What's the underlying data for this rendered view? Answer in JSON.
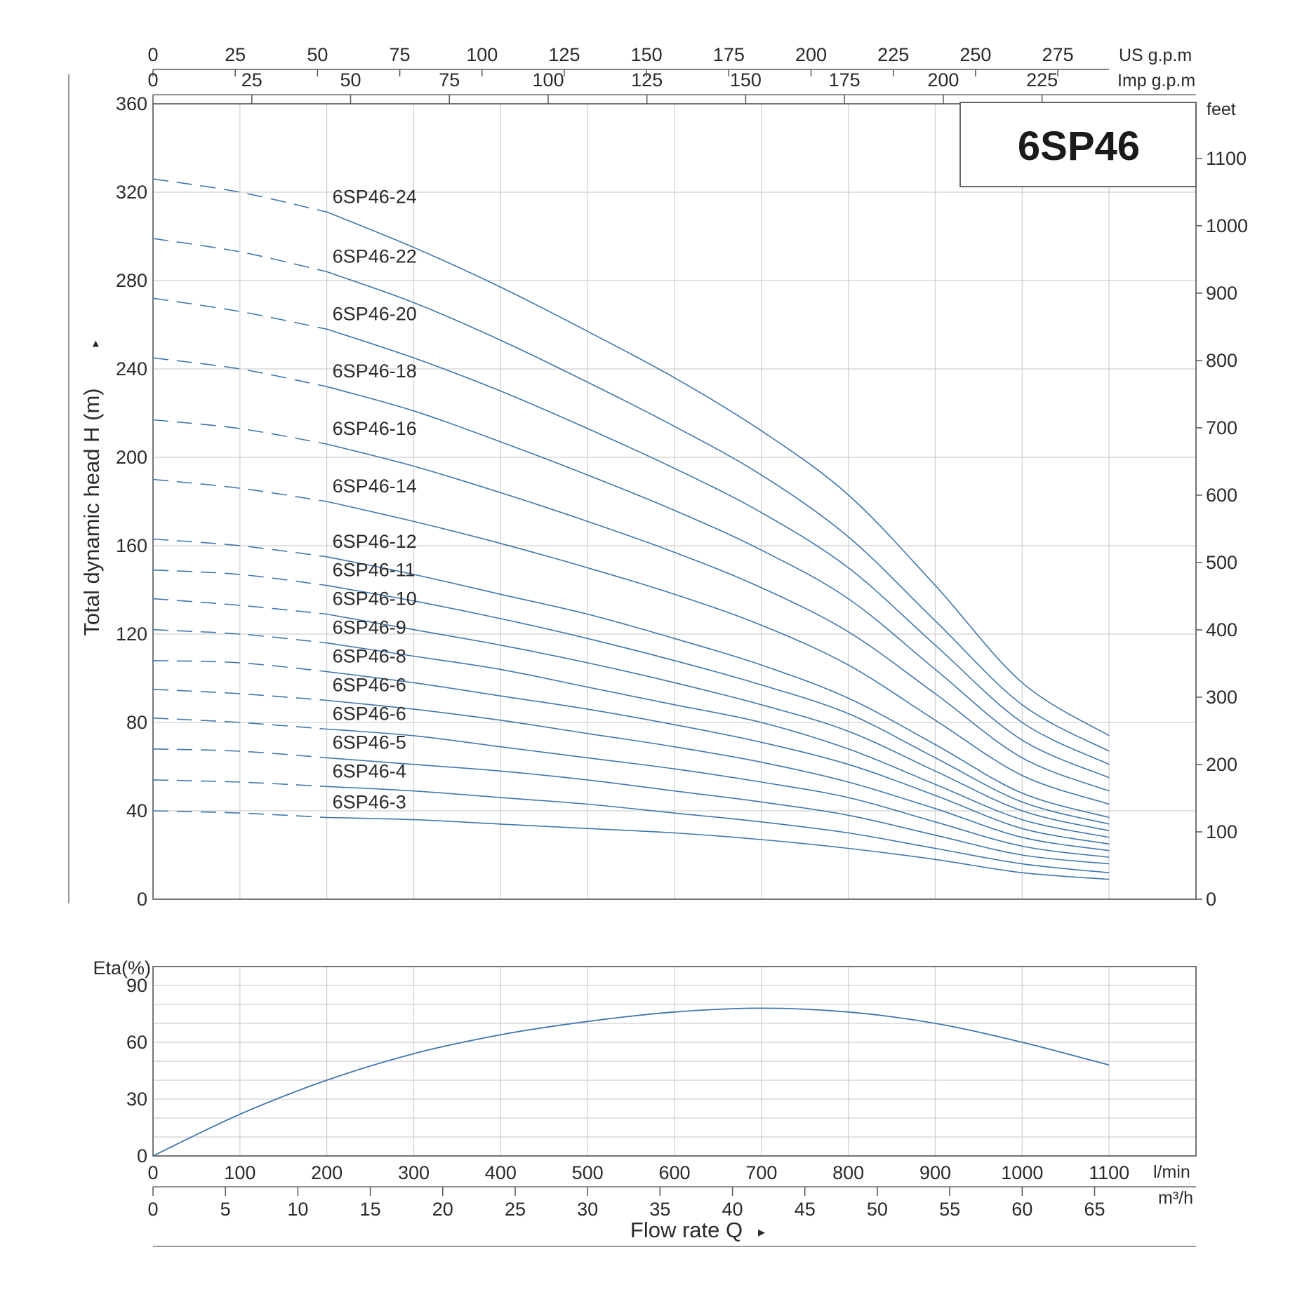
{
  "chart_data": [
    {
      "type": "line",
      "title": "6SP46",
      "ylabel": "Total dynamic head H (m)",
      "ylabel_arrow": "▸",
      "y_unit_right": "feet",
      "x_unit": "l/min",
      "xlim": [
        0,
        1200
      ],
      "ylim": [
        0,
        360
      ],
      "grid": true,
      "y_ticks": [
        "0",
        "40",
        "80",
        "120",
        "160",
        "200",
        "240",
        "280",
        "320",
        "360"
      ],
      "feet_ticks": [
        "0",
        "100",
        "200",
        "300",
        "400",
        "500",
        "600",
        "700",
        "800",
        "900",
        "1000",
        "1100"
      ],
      "us_gpm": {
        "unit": "US g.p.m",
        "ticks": [
          "0",
          "25",
          "50",
          "75",
          "100",
          "125",
          "150",
          "175",
          "200",
          "225",
          "250",
          "275"
        ]
      },
      "imp_gpm": {
        "unit": "Imp g.p.m",
        "ticks": [
          "0",
          "25",
          "50",
          "75",
          "100",
          "125",
          "150",
          "175",
          "200",
          "225"
        ]
      },
      "x": [
        0,
        100,
        200,
        300,
        400,
        500,
        600,
        700,
        800,
        900,
        1000,
        1100
      ],
      "dashed_until_x": 200,
      "series": [
        {
          "name": "6SP46-24",
          "values": [
            326,
            320,
            311,
            295,
            277,
            257,
            236,
            212,
            183,
            142,
            98,
            74
          ]
        },
        {
          "name": "6SP46-22",
          "values": [
            299,
            293,
            284,
            270,
            253,
            234,
            214,
            192,
            164,
            126,
            88,
            67
          ]
        },
        {
          "name": "6SP46-20",
          "values": [
            272,
            266,
            258,
            245,
            230,
            213,
            195,
            175,
            150,
            115,
            80,
            61
          ]
        },
        {
          "name": "6SP46-18",
          "values": [
            245,
            240,
            232,
            221,
            207,
            192,
            176,
            158,
            136,
            104,
            72,
            55
          ]
        },
        {
          "name": "6SP46-16",
          "values": [
            217,
            213,
            206,
            196,
            184,
            171,
            157,
            141,
            121,
            93,
            64,
            49
          ]
        },
        {
          "name": "6SP46-14",
          "values": [
            190,
            186,
            180,
            171,
            161,
            150,
            138,
            124,
            106,
            81,
            56,
            43
          ]
        },
        {
          "name": "6SP46-12",
          "values": [
            163,
            160,
            155,
            147,
            138,
            129,
            118,
            106,
            91,
            70,
            48,
            37
          ]
        },
        {
          "name": "6SP46-11",
          "values": [
            149,
            147,
            142,
            135,
            127,
            118,
            108,
            97,
            84,
            64,
            44,
            34
          ]
        },
        {
          "name": "6SP46-10",
          "values": [
            136,
            133,
            129,
            122,
            115,
            107,
            98,
            88,
            76,
            58,
            40,
            31
          ]
        },
        {
          "name": "6SP46-9",
          "values": [
            122,
            120,
            116,
            110,
            104,
            96,
            88,
            80,
            68,
            52,
            36,
            28
          ]
        },
        {
          "name": "6SP46-8",
          "values": [
            108,
            107,
            103,
            98,
            92,
            86,
            79,
            71,
            61,
            47,
            32,
            25
          ]
        },
        {
          "name": "6SP46-6",
          "values": [
            95,
            93,
            90,
            86,
            81,
            75,
            69,
            62,
            53,
            41,
            28,
            22
          ]
        },
        {
          "name": "6SP46-6",
          "values": [
            82,
            80,
            77,
            74,
            69,
            64,
            59,
            53,
            46,
            35,
            24,
            19
          ]
        },
        {
          "name": "6SP46-5",
          "values": [
            68,
            67,
            64,
            61,
            58,
            54,
            49,
            44,
            38,
            29,
            20,
            16
          ]
        },
        {
          "name": "6SP46-4",
          "values": [
            54,
            53,
            51,
            49,
            46,
            43,
            39,
            35,
            30,
            23,
            16,
            12
          ]
        },
        {
          "name": "6SP46-3",
          "values": [
            40,
            39,
            37,
            36,
            34,
            32,
            30,
            27,
            23,
            18,
            12,
            9
          ]
        }
      ]
    },
    {
      "type": "line",
      "ylabel": "Eta(%)",
      "xlabel": "Flow rate Q",
      "xlabel_arrow": "▸",
      "xlim": [
        0,
        1200
      ],
      "ylim": [
        0,
        100
      ],
      "grid": true,
      "y_ticks": [
        "0",
        "30",
        "60",
        "90"
      ],
      "x_unit": "l/min",
      "x_ticks": [
        "0",
        "100",
        "200",
        "300",
        "400",
        "500",
        "600",
        "700",
        "800",
        "900",
        "1000",
        "1100"
      ],
      "m3h": {
        "unit": "m³/h",
        "ticks": [
          "0",
          "5",
          "10",
          "15",
          "20",
          "25",
          "30",
          "35",
          "40",
          "45",
          "50",
          "55",
          "60",
          "65"
        ]
      },
      "series": [
        {
          "x": [
            0,
            100,
            200,
            300,
            400,
            500,
            600,
            700,
            800,
            900,
            1000,
            1100
          ],
          "values": [
            0,
            22,
            40,
            54,
            64,
            71,
            76,
            78,
            76,
            70,
            60,
            48
          ]
        }
      ]
    }
  ]
}
